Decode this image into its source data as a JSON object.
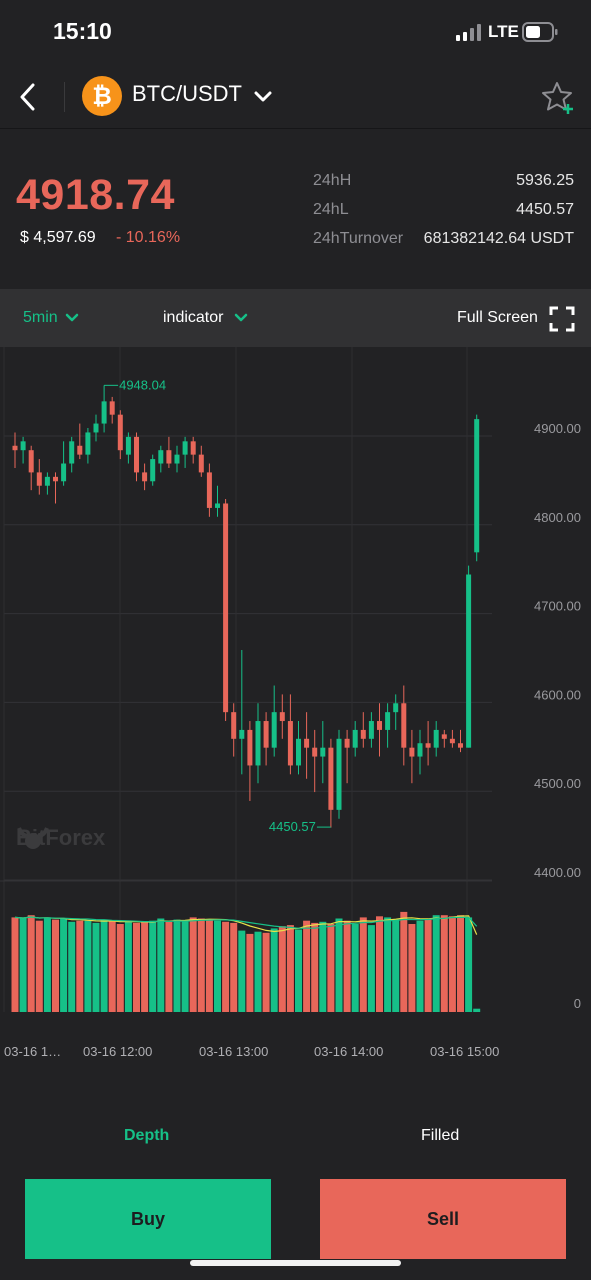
{
  "status_bar": {
    "time": "15:10",
    "network": "LTE",
    "icons": [
      "signal-icon",
      "battery-icon"
    ]
  },
  "nav": {
    "pair": "BTC/USDT",
    "coin_symbol": "₿",
    "icons": [
      "back-arrow-icon",
      "bitcoin-icon",
      "chevron-down-icon",
      "star-plus-icon"
    ]
  },
  "ticker": {
    "last_price": "4918.74",
    "usd_price": "$ 4,597.69",
    "change": "- 10.16%",
    "stats": [
      {
        "label": "24hH",
        "value": "5936.25"
      },
      {
        "label": "24hL",
        "value": "4450.57"
      },
      {
        "label": "24hTurnover",
        "value": "681382142.64 USDT"
      }
    ]
  },
  "toolbar": {
    "interval": "5min",
    "indicator": "indicator",
    "fullscreen": "Full Screen"
  },
  "chart_data": {
    "type": "candlestick",
    "y_ticks": [
      "4900.00",
      "4800.00",
      "4700.00",
      "4600.00",
      "4500.00",
      "4400.00"
    ],
    "volume_tick": "0",
    "x_labels": [
      "03-16 1…",
      "03-16 12:00",
      "03-16 13:00",
      "03-16 14:00",
      "03-16 15:00"
    ],
    "high_marker": "4948.04",
    "low_marker": "4450.57",
    "watermark": "BitForex",
    "ylim": [
      4380,
      5000
    ],
    "colors": {
      "up": "#16c088",
      "down": "#e8675a",
      "ma1": "#e6e14a",
      "ma2": "#16c088"
    },
    "candles": [
      [
        4880,
        4895,
        4855,
        4875
      ],
      [
        4875,
        4890,
        4860,
        4885
      ],
      [
        4875,
        4880,
        4830,
        4850
      ],
      [
        4850,
        4865,
        4825,
        4835
      ],
      [
        4835,
        4850,
        4825,
        4845
      ],
      [
        4845,
        4850,
        4815,
        4840
      ],
      [
        4840,
        4885,
        4835,
        4860
      ],
      [
        4860,
        4890,
        4850,
        4885
      ],
      [
        4880,
        4905,
        4865,
        4870
      ],
      [
        4870,
        4900,
        4860,
        4895
      ],
      [
        4895,
        4915,
        4885,
        4905
      ],
      [
        4905,
        4948,
        4895,
        4930
      ],
      [
        4930,
        4935,
        4905,
        4915
      ],
      [
        4915,
        4920,
        4865,
        4875
      ],
      [
        4870,
        4895,
        4860,
        4890
      ],
      [
        4890,
        4895,
        4840,
        4850
      ],
      [
        4850,
        4860,
        4830,
        4840
      ],
      [
        4840,
        4870,
        4835,
        4865
      ],
      [
        4860,
        4880,
        4850,
        4875
      ],
      [
        4875,
        4890,
        4855,
        4860
      ],
      [
        4860,
        4880,
        4850,
        4870
      ],
      [
        4870,
        4890,
        4855,
        4885
      ],
      [
        4885,
        4890,
        4860,
        4870
      ],
      [
        4870,
        4880,
        4845,
        4850
      ],
      [
        4850,
        4860,
        4800,
        4810
      ],
      [
        4810,
        4835,
        4800,
        4815
      ],
      [
        4815,
        4820,
        4570,
        4580
      ],
      [
        4580,
        4590,
        4530,
        4550
      ],
      [
        4550,
        4650,
        4510,
        4560
      ],
      [
        4560,
        4570,
        4480,
        4520
      ],
      [
        4520,
        4590,
        4500,
        4570
      ],
      [
        4570,
        4580,
        4520,
        4540
      ],
      [
        4540,
        4610,
        4530,
        4580
      ],
      [
        4580,
        4600,
        4550,
        4570
      ],
      [
        4570,
        4600,
        4510,
        4520
      ],
      [
        4520,
        4570,
        4510,
        4550
      ],
      [
        4550,
        4580,
        4505,
        4540
      ],
      [
        4540,
        4560,
        4490,
        4530
      ],
      [
        4530,
        4570,
        4500,
        4540
      ],
      [
        4540,
        4550,
        4450,
        4470
      ],
      [
        4470,
        4560,
        4460,
        4550
      ],
      [
        4550,
        4560,
        4500,
        4540
      ],
      [
        4540,
        4570,
        4530,
        4560
      ],
      [
        4560,
        4580,
        4540,
        4550
      ],
      [
        4550,
        4580,
        4540,
        4570
      ],
      [
        4570,
        4590,
        4530,
        4560
      ],
      [
        4560,
        4590,
        4540,
        4580
      ],
      [
        4580,
        4600,
        4560,
        4590
      ],
      [
        4590,
        4610,
        4520,
        4540
      ],
      [
        4540,
        4560,
        4500,
        4530
      ],
      [
        4530,
        4560,
        4510,
        4545
      ],
      [
        4545,
        4570,
        4520,
        4540
      ],
      [
        4540,
        4570,
        4530,
        4560
      ],
      [
        4555,
        4560,
        4540,
        4550
      ],
      [
        4550,
        4560,
        4540,
        4545
      ],
      [
        4545,
        4560,
        4535,
        4540
      ],
      [
        4540,
        4745,
        4540,
        4735
      ],
      [
        4760,
        4915,
        4750,
        4910
      ]
    ],
    "volumes": [
      0.86,
      0.85,
      0.88,
      0.83,
      0.86,
      0.84,
      0.85,
      0.82,
      0.83,
      0.83,
      0.81,
      0.84,
      0.83,
      0.8,
      0.83,
      0.81,
      0.82,
      0.83,
      0.85,
      0.82,
      0.84,
      0.83,
      0.86,
      0.85,
      0.84,
      0.83,
      0.82,
      0.81,
      0.74,
      0.71,
      0.73,
      0.72,
      0.76,
      0.78,
      0.79,
      0.75,
      0.83,
      0.81,
      0.82,
      0.8,
      0.85,
      0.83,
      0.8,
      0.86,
      0.79,
      0.87,
      0.86,
      0.84,
      0.91,
      0.8,
      0.83,
      0.85,
      0.88,
      0.88,
      0.87,
      0.88,
      0.86,
      0.03
    ]
  },
  "tabs": {
    "depth": "Depth",
    "filled": "Filled"
  },
  "actions": {
    "buy": "Buy",
    "sell": "Sell"
  }
}
